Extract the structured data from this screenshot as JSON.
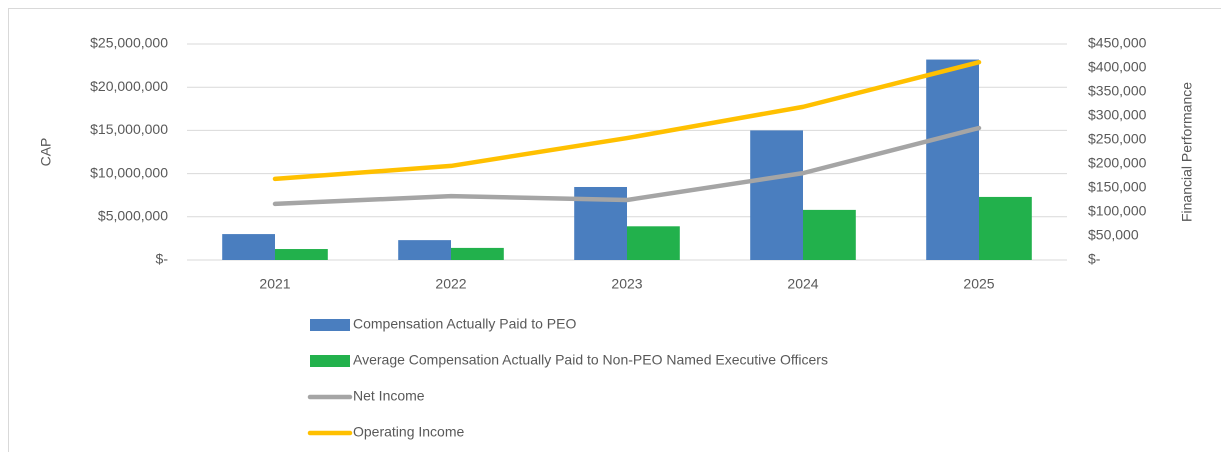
{
  "chart_data": {
    "type": "bar",
    "ylabel": "CAP",
    "y2label": "Financial Performance",
    "categories": [
      "2021",
      "2022",
      "2023",
      "2024",
      "2025"
    ],
    "series": [
      {
        "name": "Compensation Actually Paid to PEO",
        "type": "bar",
        "color": "#4a7ebf",
        "values": [
          3000000,
          2300000,
          8450000,
          15000000,
          23200000
        ]
      },
      {
        "name": "Average Compensation Actually Paid to Non-PEO Named Executive Officers",
        "type": "bar",
        "color": "#22b14c",
        "values": [
          1270000,
          1400000,
          3900000,
          5800000,
          7300000
        ]
      },
      {
        "name": "Net Income",
        "type": "line",
        "axis": "y2",
        "color": "#a5a5a5",
        "values": [
          117000,
          133000,
          125000,
          181000,
          275000
        ]
      },
      {
        "name": "Operating Income",
        "type": "line",
        "axis": "y2",
        "color": "#ffc000",
        "values": [
          169000,
          196000,
          254000,
          319000,
          412000
        ]
      }
    ],
    "ylim": [
      0,
      25000000
    ],
    "yticks": [
      {
        "value": 0,
        "label": "$-"
      },
      {
        "value": 5000000,
        "label": "$5,000,000"
      },
      {
        "value": 10000000,
        "label": "$10,000,000"
      },
      {
        "value": 15000000,
        "label": "$15,000,000"
      },
      {
        "value": 20000000,
        "label": "$20,000,000"
      },
      {
        "value": 25000000,
        "label": "$25,000,000"
      }
    ],
    "y2lim": [
      0,
      450000
    ],
    "y2ticks": [
      {
        "value": 0,
        "label": "$-"
      },
      {
        "value": 50000,
        "label": "$50,000"
      },
      {
        "value": 100000,
        "label": "$100,000"
      },
      {
        "value": 150000,
        "label": "$150,000"
      },
      {
        "value": 200000,
        "label": "$200,000"
      },
      {
        "value": 250000,
        "label": "$250,000"
      },
      {
        "value": 300000,
        "label": "$300,000"
      },
      {
        "value": 350000,
        "label": "$350,000"
      },
      {
        "value": 400000,
        "label": "$400,000"
      },
      {
        "value": 450000,
        "label": "$450,000"
      }
    ],
    "grid": true
  }
}
